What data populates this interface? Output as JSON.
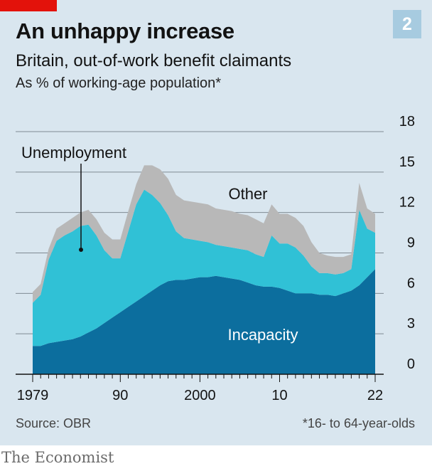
{
  "header": {
    "title": "An unhappy increase",
    "badge": "2",
    "subtitle": "Britain, out-of-work benefit claimants",
    "subsubtitle": "As % of working-age population*"
  },
  "footer": {
    "source": "Source: OBR",
    "footnote": "*16- to 64-year-olds",
    "brand": "The Economist"
  },
  "colors": {
    "incapacity": "#0c6e9e",
    "unemployment": "#30c1d6",
    "other": "#b8b8b8",
    "background": "#d9e6ef",
    "gridline": "#7f8a93",
    "accent_red": "#e3120b",
    "badge": "#a7cbe0"
  },
  "chart_data": {
    "type": "area",
    "stacked": true,
    "x": [
      1979,
      1980,
      1981,
      1982,
      1983,
      1984,
      1985,
      1986,
      1987,
      1988,
      1989,
      1990,
      1991,
      1992,
      1993,
      1994,
      1995,
      1996,
      1997,
      1998,
      1999,
      2000,
      2001,
      2002,
      2003,
      2004,
      2005,
      2006,
      2007,
      2008,
      2009,
      2010,
      2011,
      2012,
      2013,
      2014,
      2015,
      2016,
      2017,
      2018,
      2019,
      2020,
      2021,
      2022
    ],
    "series": [
      {
        "name": "Incapacity",
        "values": [
          2.1,
          2.1,
          2.3,
          2.4,
          2.5,
          2.6,
          2.8,
          3.1,
          3.4,
          3.8,
          4.2,
          4.6,
          5.0,
          5.4,
          5.8,
          6.2,
          6.6,
          6.9,
          7.0,
          7.0,
          7.1,
          7.2,
          7.2,
          7.3,
          7.2,
          7.1,
          7.0,
          6.8,
          6.6,
          6.5,
          6.5,
          6.4,
          6.2,
          6.0,
          6.0,
          6.0,
          5.9,
          5.9,
          5.8,
          6.0,
          6.2,
          6.6,
          7.2,
          7.8
        ]
      },
      {
        "name": "Unemployment",
        "values": [
          3.2,
          3.8,
          6.2,
          7.5,
          7.8,
          8.0,
          8.2,
          8.0,
          6.9,
          5.4,
          4.4,
          4.0,
          5.6,
          7.2,
          7.9,
          7.1,
          6.1,
          4.9,
          3.6,
          3.1,
          2.9,
          2.7,
          2.6,
          2.3,
          2.3,
          2.3,
          2.3,
          2.4,
          2.3,
          2.2,
          3.8,
          3.3,
          3.5,
          3.4,
          2.8,
          2.0,
          1.6,
          1.6,
          1.6,
          1.5,
          1.6,
          5.6,
          3.6,
          2.7
        ]
      },
      {
        "name": "Other",
        "values": [
          0.8,
          0.8,
          0.8,
          0.9,
          0.9,
          1.0,
          1.0,
          1.1,
          1.2,
          1.3,
          1.4,
          1.4,
          1.5,
          1.5,
          1.8,
          2.2,
          2.5,
          2.7,
          2.7,
          2.8,
          2.8,
          2.8,
          2.8,
          2.7,
          2.7,
          2.7,
          2.6,
          2.6,
          2.6,
          2.5,
          2.3,
          2.2,
          2.2,
          2.2,
          2.2,
          1.8,
          1.5,
          1.3,
          1.3,
          1.2,
          1.1,
          2.0,
          1.5,
          1.4
        ]
      }
    ],
    "y_ticks": [
      0,
      3,
      6,
      9,
      12,
      15,
      18
    ],
    "x_ticks": [
      {
        "value": 1979,
        "label": "1979"
      },
      {
        "value": 1990,
        "label": "90"
      },
      {
        "value": 2000,
        "label": "2000"
      },
      {
        "value": 2010,
        "label": "10"
      },
      {
        "value": 2022,
        "label": "22"
      }
    ],
    "xlim": [
      1979,
      2022
    ],
    "ylim": [
      0,
      18
    ],
    "y_axis_side": "right",
    "grid": true,
    "legend": "inline labels",
    "labels": [
      {
        "text": "Unemployment",
        "series": "Unemployment"
      },
      {
        "text": "Other",
        "series": "Other"
      },
      {
        "text": "Incapacity",
        "series": "Incapacity"
      }
    ]
  }
}
